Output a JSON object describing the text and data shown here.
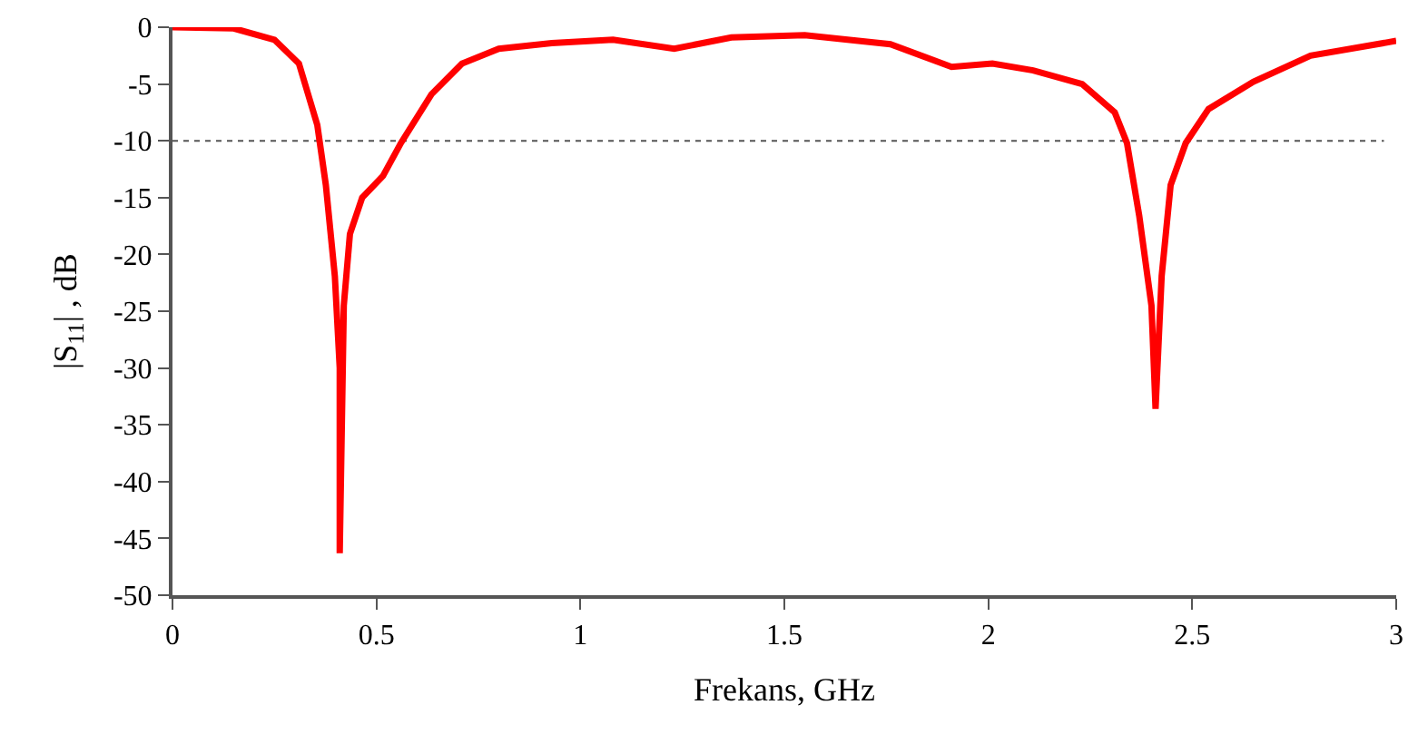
{
  "chart_data": {
    "type": "line",
    "xlabel": "Frekans, GHz",
    "ylabel": "|S$_{11}$| , dB",
    "xlim": [
      0,
      3
    ],
    "xticks": [
      0,
      0.5,
      1,
      1.5,
      2,
      2.5,
      3
    ],
    "ylim": [
      -50,
      0
    ],
    "yticks": [
      0,
      -5,
      -10,
      -15,
      -20,
      -25,
      -30,
      -35,
      -40,
      -45,
      -50
    ],
    "grid": false,
    "marker": "none",
    "line_style": "solid",
    "ref_lines": [
      {
        "axis": "y",
        "value": -10,
        "label": null,
        "color": "#555555",
        "line_style": "dotted"
      }
    ],
    "series": [
      {
        "color": "#ff0000",
        "x": [
          0,
          0.15,
          0.25,
          0.31,
          0.355,
          0.376,
          0.398,
          0.41,
          0.41,
          0.42,
          0.435,
          0.465,
          0.516,
          0.56,
          0.635,
          0.71,
          0.8,
          0.93,
          1.03,
          1.08,
          1.23,
          1.37,
          1.55,
          1.76,
          1.91,
          2.01,
          2.11,
          2.23,
          2.31,
          2.34,
          2.37,
          2.4,
          2.41,
          2.425,
          2.447,
          2.484,
          2.54,
          2.65,
          2.79,
          3.0
        ],
        "values": [
          0,
          -0.1,
          -1.1,
          -3.2,
          -8.6,
          -13.9,
          -21.9,
          -30,
          -46.3,
          -24.5,
          -18.2,
          -15,
          -13.1,
          -10.2,
          -5.9,
          -3.2,
          -1.9,
          -1.4,
          -1.2,
          -1.1,
          -1.9,
          -0.9,
          -0.7,
          -1.5,
          -3.5,
          -3.2,
          -3.8,
          -5,
          -7.5,
          -10.2,
          -16.6,
          -24.5,
          -33.6,
          -21.9,
          -13.9,
          -10.2,
          -7.2,
          -4.8,
          -2.5,
          -1.2
        ]
      }
    ]
  }
}
